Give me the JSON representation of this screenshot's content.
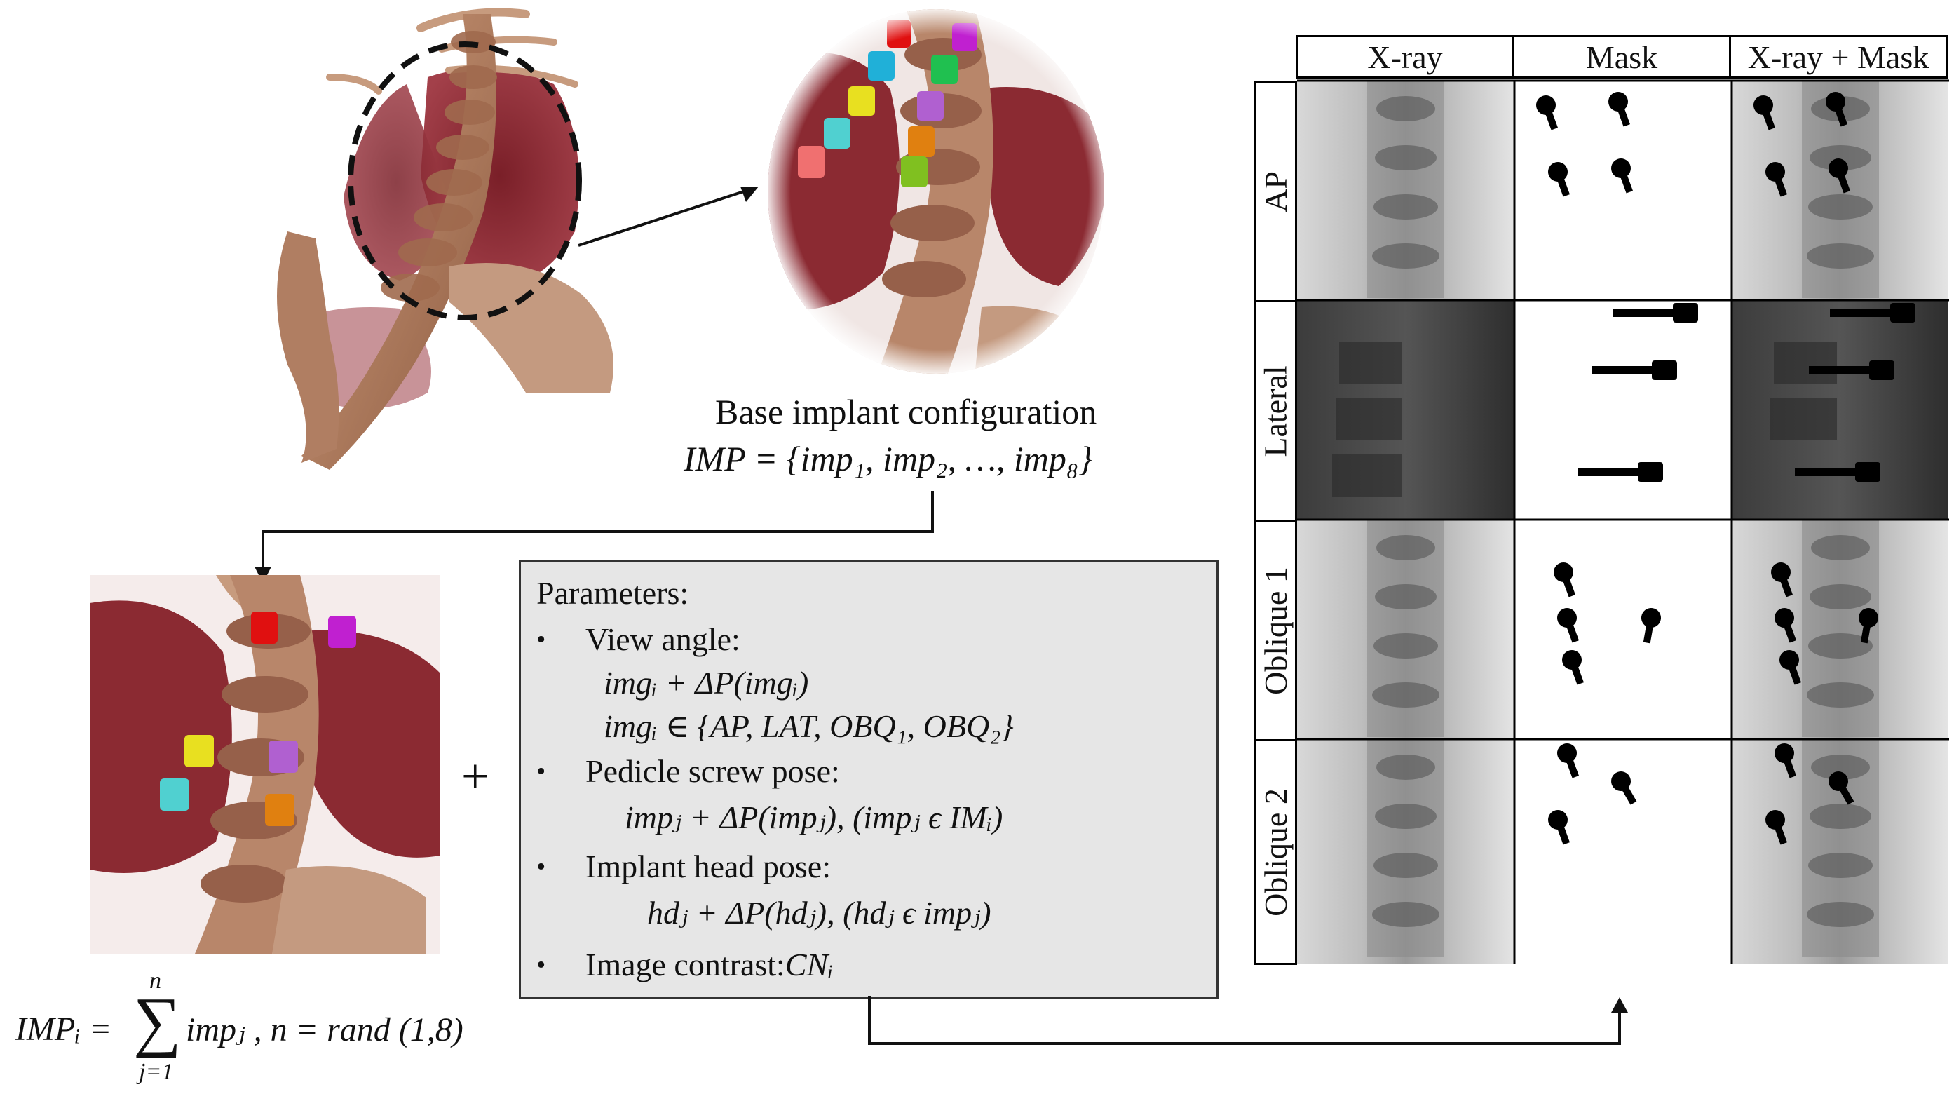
{
  "base_config": {
    "title": "Base implant configuration",
    "formula": "IMP = {imp₁, imp₂, …, imp₈}"
  },
  "sampled_config": {
    "formula_lhs": "IMPᵢ =",
    "sum_upper": "n",
    "sum_lower": "j=1",
    "formula_rhs": "impⱼ , n = rand (1,8)"
  },
  "plus_sign": "+",
  "parameters": {
    "heading": "Parameters:",
    "bullet_glyph": "•",
    "items": [
      {
        "label": "View angle:",
        "lines": [
          "imgᵢ + ΔP(imgᵢ)",
          "imgᵢ ∈ {AP, LAT, OBQ₁, OBQ₂}"
        ]
      },
      {
        "label": "Pedicle screw pose:",
        "lines": [
          "impⱼ + ΔP(impⱼ), (impⱼ ϵ IMᵢ)"
        ]
      },
      {
        "label": "Implant head pose:",
        "lines": [
          "hdⱼ + ΔP(hdⱼ), (hdⱼ ϵ impⱼ)"
        ]
      },
      {
        "label": "Image contrast:",
        "lines": [
          "CNᵢ"
        ]
      }
    ]
  },
  "grid": {
    "columns": [
      "X-ray",
      "Mask",
      "X-ray + Mask"
    ],
    "rows": [
      "AP",
      "Lateral",
      "Oblique 1",
      "Oblique 2"
    ]
  },
  "colors": {
    "implant_red": "#e01010",
    "implant_magenta": "#c020d0",
    "implant_cyan": "#20b0d8",
    "implant_green": "#20c050",
    "implant_yellow": "#e8e020",
    "implant_purple": "#b060d0",
    "implant_teal": "#50d0d0",
    "implant_orange": "#e08010",
    "implant_pink": "#f07070",
    "implant_lime": "#80c020",
    "tissue": "#8b2a32",
    "bone": "#b8866a"
  },
  "icons": {
    "dashed_circle": "dashed-selection-circle",
    "arrow": "arrow-head"
  }
}
